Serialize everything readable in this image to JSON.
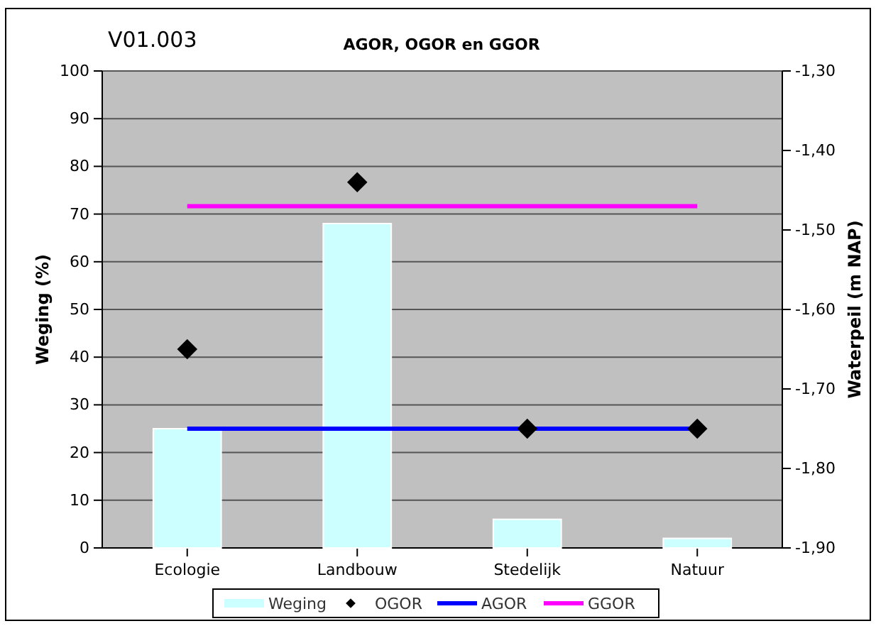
{
  "chart_data": {
    "type": "bar",
    "title": "AGOR, OGOR en GGOR",
    "ylabel": "Weging (%)",
    "y2label": "Waterpeil (m NAP)",
    "annotations": [
      "V01.003"
    ],
    "categories": [
      "Ecologie",
      "Landbouw",
      "Stedelijk",
      "Natuur"
    ],
    "series": [
      {
        "name": "Weging",
        "color": "#ccffff",
        "values": [
          25,
          68,
          6,
          2
        ]
      },
      {
        "name": "OGOR",
        "type": "scatter",
        "axis": "y2",
        "marker": "diamond",
        "color": "#000000",
        "values": [
          -1.65,
          -1.44,
          -1.75,
          -1.75
        ]
      },
      {
        "name": "AGOR",
        "type": "line",
        "axis": "y2",
        "color": "#0000ff",
        "values": [
          -1.75,
          -1.75,
          -1.75,
          -1.75
        ]
      },
      {
        "name": "GGOR",
        "type": "line",
        "axis": "y2",
        "color": "#ff00ff",
        "values": [
          -1.47,
          -1.47,
          -1.47,
          -1.47
        ]
      }
    ],
    "ylim": [
      0,
      100
    ],
    "yticks": [
      0,
      10,
      20,
      30,
      40,
      50,
      60,
      70,
      80,
      90,
      100
    ],
    "y2lim": [
      -1.9,
      -1.3
    ],
    "y2ticks": [
      {
        "value": -1.9,
        "label": "-1,90"
      },
      {
        "value": -1.8,
        "label": "-1,80"
      },
      {
        "value": -1.7,
        "label": "-1,70"
      },
      {
        "value": -1.6,
        "label": "-1,60"
      },
      {
        "value": -1.5,
        "label": "-1,50"
      },
      {
        "value": -1.4,
        "label": "-1,40"
      },
      {
        "value": -1.3,
        "label": "-1,30"
      }
    ],
    "grid": "y",
    "legend": "bottom"
  }
}
